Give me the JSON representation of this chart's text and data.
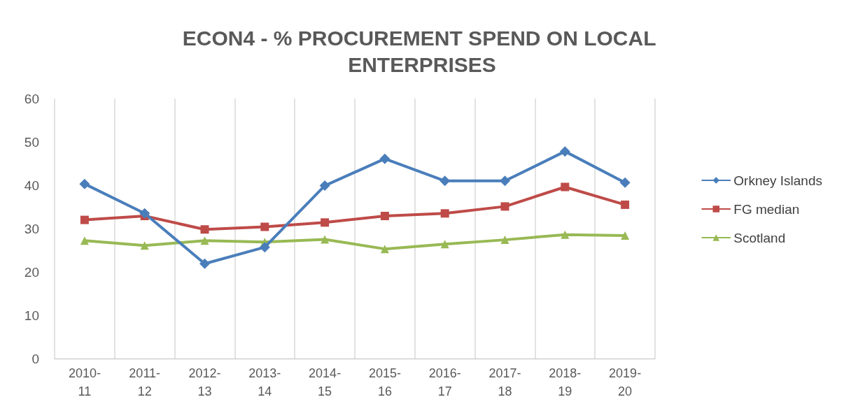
{
  "chart_data": {
    "type": "line",
    "title": "ECON4 - % PROCUREMENT SPEND ON LOCAL ENTERPRISES",
    "categories": [
      "2010-11",
      "2011-12",
      "2012-13",
      "2013-14",
      "2014-15",
      "2015-16",
      "2016-17",
      "2017-18",
      "2018-19",
      "2019-20"
    ],
    "series": [
      {
        "name": "Orkney Islands",
        "color": "#4a7ebb",
        "marker": "diamond",
        "values": [
          40.3,
          33.5,
          21.9,
          25.7,
          39.9,
          46.1,
          41.0,
          41.0,
          47.8,
          40.6
        ]
      },
      {
        "name": "FG median",
        "color": "#be4b48",
        "marker": "square",
        "values": [
          32.0,
          32.9,
          29.8,
          30.4,
          31.4,
          32.9,
          33.5,
          35.1,
          39.6,
          35.5
        ]
      },
      {
        "name": "Scotland",
        "color": "#98b954",
        "marker": "triangle",
        "values": [
          27.2,
          26.1,
          27.2,
          26.9,
          27.5,
          25.3,
          26.4,
          27.4,
          28.6,
          28.4
        ]
      }
    ],
    "ylim": [
      0,
      60
    ],
    "yticks": [
      0,
      10,
      20,
      30,
      40,
      50,
      60
    ],
    "grid": "x",
    "legend": "right",
    "line_style": "solid"
  }
}
